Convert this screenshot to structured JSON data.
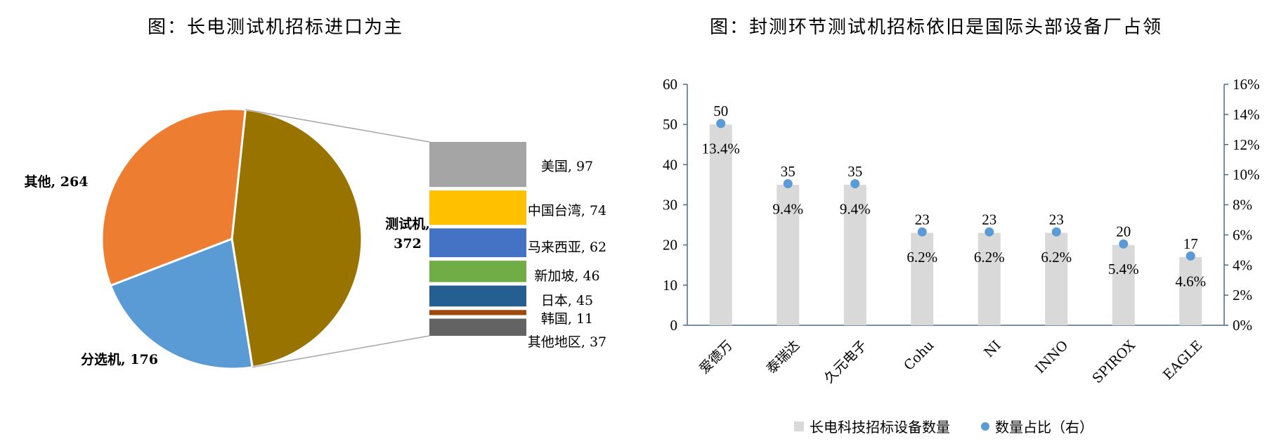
{
  "titles": {
    "left": "图：长电测试机招标进口为主",
    "right": "图：封测环节测试机招标依旧是国际头部设备厂占领"
  },
  "chart_data": [
    {
      "type": "pie",
      "title": "图：长电测试机招标进口为主",
      "slices": [
        {
          "label": "测试机, 372",
          "name": "测试机",
          "value": 372,
          "color": "#987300"
        },
        {
          "label": "分选机, 176",
          "name": "分选机",
          "value": 176,
          "color": "#5b9bd5"
        },
        {
          "label": "其他, 264",
          "name": "其他",
          "value": 264,
          "color": "#ed7d31"
        }
      ],
      "breakdown_of": "测试机",
      "breakdown": [
        {
          "label": "美国, 97",
          "name": "美国",
          "value": 97,
          "color": "#a5a5a5"
        },
        {
          "label": "中国台湾, 74",
          "name": "中国台湾",
          "value": 74,
          "color": "#ffc000"
        },
        {
          "label": "马来西亚, 62",
          "name": "马来西亚",
          "value": 62,
          "color": "#4472c4"
        },
        {
          "label": "新加坡, 46",
          "name": "新加坡",
          "value": 46,
          "color": "#70ad47"
        },
        {
          "label": "日本, 45",
          "name": "日本",
          "value": 45,
          "color": "#255e91"
        },
        {
          "label": "韩国, 11",
          "name": "韩国",
          "value": 11,
          "color": "#9e480e"
        },
        {
          "label": "其他地区, 37",
          "name": "其他地区",
          "value": 37,
          "color": "#636363"
        }
      ]
    },
    {
      "type": "bar",
      "title": "图：封测环节测试机招标依旧是国际头部设备厂占领",
      "categories": [
        "爱德万",
        "泰瑞达",
        "久元电子",
        "Cohu",
        "NI",
        "INNO",
        "SPIROX",
        "EAGLE"
      ],
      "series": [
        {
          "name": "长电科技招标设备数量",
          "type": "bar",
          "axis": "left",
          "values": [
            50,
            35,
            35,
            23,
            23,
            23,
            20,
            17
          ],
          "labels": [
            "50",
            "35",
            "35",
            "23",
            "23",
            "23",
            "20",
            "17"
          ],
          "color": "#d9d9d9"
        },
        {
          "name": "数量占比（右）",
          "type": "scatter",
          "axis": "right",
          "values": [
            13.4,
            9.4,
            9.4,
            6.2,
            6.2,
            6.2,
            5.4,
            4.6
          ],
          "labels": [
            "13.4%",
            "9.4%",
            "9.4%",
            "6.2%",
            "6.2%",
            "6.2%",
            "5.4%",
            "4.6%"
          ],
          "color": "#5b9bd5"
        }
      ],
      "y_left": {
        "min": 0,
        "max": 60,
        "ticks": [
          "0",
          "10",
          "20",
          "30",
          "40",
          "50",
          "60"
        ]
      },
      "y_right": {
        "min": 0,
        "max": 16,
        "ticks": [
          "0%",
          "2%",
          "4%",
          "6%",
          "8%",
          "10%",
          "12%",
          "14%",
          "16%"
        ]
      },
      "grid": false,
      "legend_position": "bottom"
    }
  ]
}
